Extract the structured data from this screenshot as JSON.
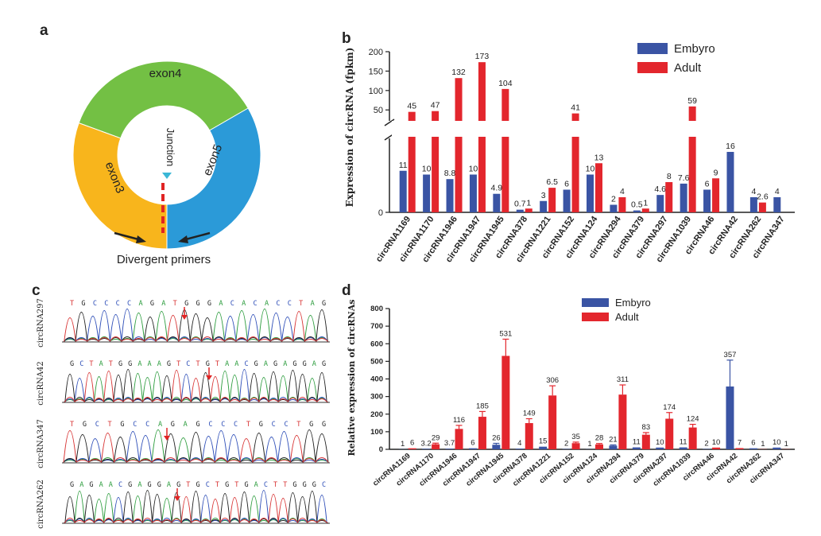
{
  "panels": {
    "a": {
      "letter": "a",
      "segments": [
        {
          "label": "exon4",
          "color": "#73c044"
        },
        {
          "label": "exon5",
          "color": "#2b9ad8"
        },
        {
          "label": "exon3",
          "color": "#f8b51c"
        }
      ],
      "junction_label": "Junction",
      "junction_marker_color": "#e02424",
      "junction_arrow_color": "#3ab7d6",
      "primers_label": "Divergent primers"
    },
    "b": {
      "letter": "b"
    },
    "c": {
      "letter": "c",
      "traces": [
        {
          "name": "circRNA297",
          "sequence": "TGCCCCAGATGGGACACACCTAG"
        },
        {
          "name": "circRNA42",
          "sequence": "GCTATGGAAAGTCTGTAACGAGAGGAG"
        },
        {
          "name": "circRNA347",
          "sequence": "TGCTGCCAGAGCCCTGCCTGG"
        },
        {
          "name": "circRNA262",
          "sequence": "GAGAACGAGGAGTGCTGTGACTTGGGC"
        }
      ],
      "base_colors": {
        "A": "#2e9d3f",
        "C": "#2f4fb8",
        "G": "#222222",
        "T": "#d83535"
      }
    },
    "d": {
      "letter": "d"
    }
  },
  "chart_data": [
    {
      "id": "b",
      "type": "bar",
      "ylabel": "Expression of circRNA (fpkm)",
      "categories": [
        "circRNA1169",
        "circRNA1170",
        "circRNA1946",
        "circRNA1947",
        "circRNA1945",
        "circRNA378",
        "circRNA1221",
        "circRNA152",
        "circRNA124",
        "circRNA294",
        "circRNA379",
        "circRNA297",
        "circRNA1039",
        "circRNA46",
        "circRNA42",
        "circRNA262",
        "circRNA347"
      ],
      "series": [
        {
          "name": "Embyro",
          "color": "#3a54a4",
          "values": [
            11,
            10,
            8.8,
            10,
            4.9,
            0.7,
            3,
            6,
            10,
            2,
            0.5,
            4.6,
            7.6,
            6,
            16,
            4,
            4
          ],
          "labels": [
            "11",
            "10",
            "8.8",
            "10",
            "4.9",
            "0.7",
            "3",
            "6",
            "10",
            "2",
            "0.5",
            "4.6",
            "7.6",
            "6",
            "16",
            "4",
            "4"
          ]
        },
        {
          "name": "Adult",
          "color": "#e3262d",
          "values": [
            45,
            47,
            132,
            173,
            104,
            1,
            6.5,
            41,
            13,
            4,
            1,
            8,
            59,
            9,
            null,
            2.6,
            null
          ],
          "labels": [
            "45",
            "47",
            "132",
            "173",
            "104",
            "1",
            "6.5",
            "41",
            "13",
            "4",
            "1",
            "8",
            "59",
            "9",
            "",
            "2.6",
            ""
          ]
        }
      ],
      "axis_break": {
        "lower": [
          0,
          20
        ],
        "upper": [
          30,
          200
        ]
      },
      "yticks": [
        0,
        50,
        100,
        150,
        200
      ],
      "yticks_upper": [
        "50",
        "100",
        "150",
        "200"
      ],
      "ytick_zero": "0"
    },
    {
      "id": "d",
      "type": "bar",
      "ylabel": "Relative expression of circRNAs",
      "categories": [
        "circRNA1169",
        "circRNA1170",
        "circRNA1946",
        "circRNA1947",
        "circRNA1945",
        "circRNA378",
        "circRNA1221",
        "circRNA152",
        "circRNA124",
        "circRNA294",
        "circRNA379",
        "circRNA297",
        "circRNA1039",
        "circRNA46",
        "circRNA42",
        "circRNA262",
        "circRNA347"
      ],
      "series": [
        {
          "name": "Embyro",
          "color": "#3a54a4",
          "values": [
            1,
            3.2,
            3.7,
            6,
            26,
            4,
            15,
            2,
            1,
            21,
            11,
            10,
            11,
            2,
            357,
            6,
            10
          ],
          "labels": [
            "1",
            "3.2",
            "3.7",
            "6",
            "26",
            "4",
            "15",
            "2",
            "1",
            "21",
            "11",
            "10",
            "11",
            "2",
            "357",
            "6",
            "10"
          ],
          "errors": [
            0,
            0,
            0,
            0,
            8,
            0,
            0,
            0,
            0,
            4,
            0,
            0,
            0,
            0,
            150,
            0,
            0
          ]
        },
        {
          "name": "Adult",
          "color": "#e3262d",
          "values": [
            6,
            29,
            116,
            185,
            531,
            149,
            306,
            35,
            28,
            311,
            83,
            174,
            124,
            10,
            7,
            1,
            1
          ],
          "labels": [
            "6",
            "29",
            "116",
            "185",
            "531",
            "149",
            "306",
            "35",
            "28",
            "311",
            "83",
            "174",
            "124",
            "10",
            "7",
            "1",
            "1"
          ],
          "errors": [
            0,
            6,
            20,
            30,
            95,
            25,
            55,
            6,
            5,
            55,
            12,
            35,
            18,
            0,
            0,
            0,
            0
          ]
        }
      ],
      "ylim": [
        0,
        800
      ],
      "yticks": [
        "0",
        "100",
        "200",
        "300",
        "400",
        "500",
        "600",
        "700",
        "800"
      ]
    }
  ]
}
